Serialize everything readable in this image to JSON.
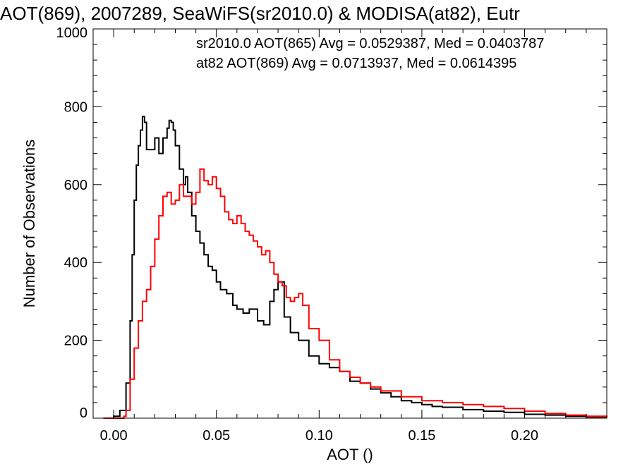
{
  "chart_data": {
    "type": "line",
    "title": "AOT(869), 2007289, SeaWiFS(sr2010.0) & MODISA(at82), Eutr",
    "xlabel": "AOT ()",
    "ylabel": "Number of Observations",
    "xlim": [
      -0.01,
      0.24
    ],
    "ylim": [
      0,
      1000
    ],
    "x_ticks": [
      0.0,
      0.05,
      0.1,
      0.15,
      0.2
    ],
    "x_tick_labels": [
      "0.00",
      "0.05",
      "0.10",
      "0.15",
      "0.20"
    ],
    "y_ticks": [
      0,
      200,
      400,
      600,
      800,
      1000
    ],
    "y_tick_labels": [
      "0",
      "200",
      "400",
      "600",
      "800",
      "1000"
    ],
    "grid": false,
    "legend_position": "top-right",
    "annotations": [
      {
        "text": "sr2010.0 AOT(865) Avg = 0.0529387, Med = 0.0403787",
        "color": "#000000"
      },
      {
        "text": "at82 AOT(869) Avg = 0.0713937, Med = 0.0614395",
        "color": "#ff0000"
      }
    ],
    "series": [
      {
        "color": "#000000",
        "x": [
          -0.005,
          0.0,
          0.003,
          0.006,
          0.008,
          0.009,
          0.01,
          0.011,
          0.012,
          0.013,
          0.014,
          0.015,
          0.016,
          0.018,
          0.02,
          0.022,
          0.024,
          0.026,
          0.027,
          0.028,
          0.029,
          0.03,
          0.032,
          0.034,
          0.035,
          0.036,
          0.038,
          0.04,
          0.042,
          0.044,
          0.046,
          0.048,
          0.05,
          0.052,
          0.055,
          0.058,
          0.06,
          0.063,
          0.066,
          0.07,
          0.073,
          0.076,
          0.078,
          0.08,
          0.083,
          0.086,
          0.09,
          0.095,
          0.1,
          0.105,
          0.11,
          0.115,
          0.12,
          0.125,
          0.13,
          0.135,
          0.14,
          0.145,
          0.15,
          0.155,
          0.16,
          0.17,
          0.18,
          0.19,
          0.2,
          0.21,
          0.22,
          0.23,
          0.24
        ],
        "values": [
          0,
          5,
          20,
          90,
          250,
          420,
          560,
          650,
          700,
          740,
          775,
          760,
          690,
          690,
          720,
          680,
          720,
          745,
          765,
          760,
          740,
          700,
          640,
          600,
          620,
          580,
          520,
          480,
          450,
          420,
          390,
          380,
          350,
          330,
          320,
          290,
          280,
          270,
          280,
          250,
          240,
          300,
          330,
          350,
          260,
          220,
          200,
          160,
          140,
          130,
          120,
          95,
          90,
          75,
          65,
          55,
          45,
          40,
          35,
          30,
          28,
          22,
          18,
          15,
          10,
          8,
          5,
          3,
          2
        ]
      },
      {
        "color": "#ff0000",
        "x": [
          -0.005,
          0.0,
          0.005,
          0.006,
          0.008,
          0.01,
          0.012,
          0.014,
          0.016,
          0.018,
          0.02,
          0.022,
          0.024,
          0.026,
          0.028,
          0.03,
          0.032,
          0.034,
          0.036,
          0.038,
          0.04,
          0.042,
          0.044,
          0.046,
          0.048,
          0.05,
          0.052,
          0.054,
          0.056,
          0.058,
          0.06,
          0.062,
          0.064,
          0.066,
          0.068,
          0.07,
          0.072,
          0.074,
          0.076,
          0.078,
          0.08,
          0.082,
          0.084,
          0.086,
          0.088,
          0.09,
          0.092,
          0.095,
          0.1,
          0.105,
          0.11,
          0.115,
          0.12,
          0.125,
          0.13,
          0.14,
          0.15,
          0.16,
          0.17,
          0.18,
          0.19,
          0.2,
          0.21,
          0.22,
          0.23,
          0.24
        ],
        "values": [
          0,
          0,
          5,
          20,
          100,
          180,
          250,
          300,
          330,
          390,
          460,
          520,
          570,
          580,
          550,
          560,
          600,
          570,
          570,
          550,
          580,
          640,
          610,
          600,
          620,
          590,
          570,
          530,
          510,
          500,
          520,
          500,
          480,
          470,
          455,
          440,
          420,
          430,
          400,
          370,
          350,
          340,
          310,
          300,
          310,
          320,
          290,
          230,
          200,
          150,
          120,
          105,
          90,
          80,
          70,
          55,
          45,
          40,
          35,
          30,
          25,
          18,
          12,
          8,
          5,
          2
        ]
      }
    ]
  }
}
